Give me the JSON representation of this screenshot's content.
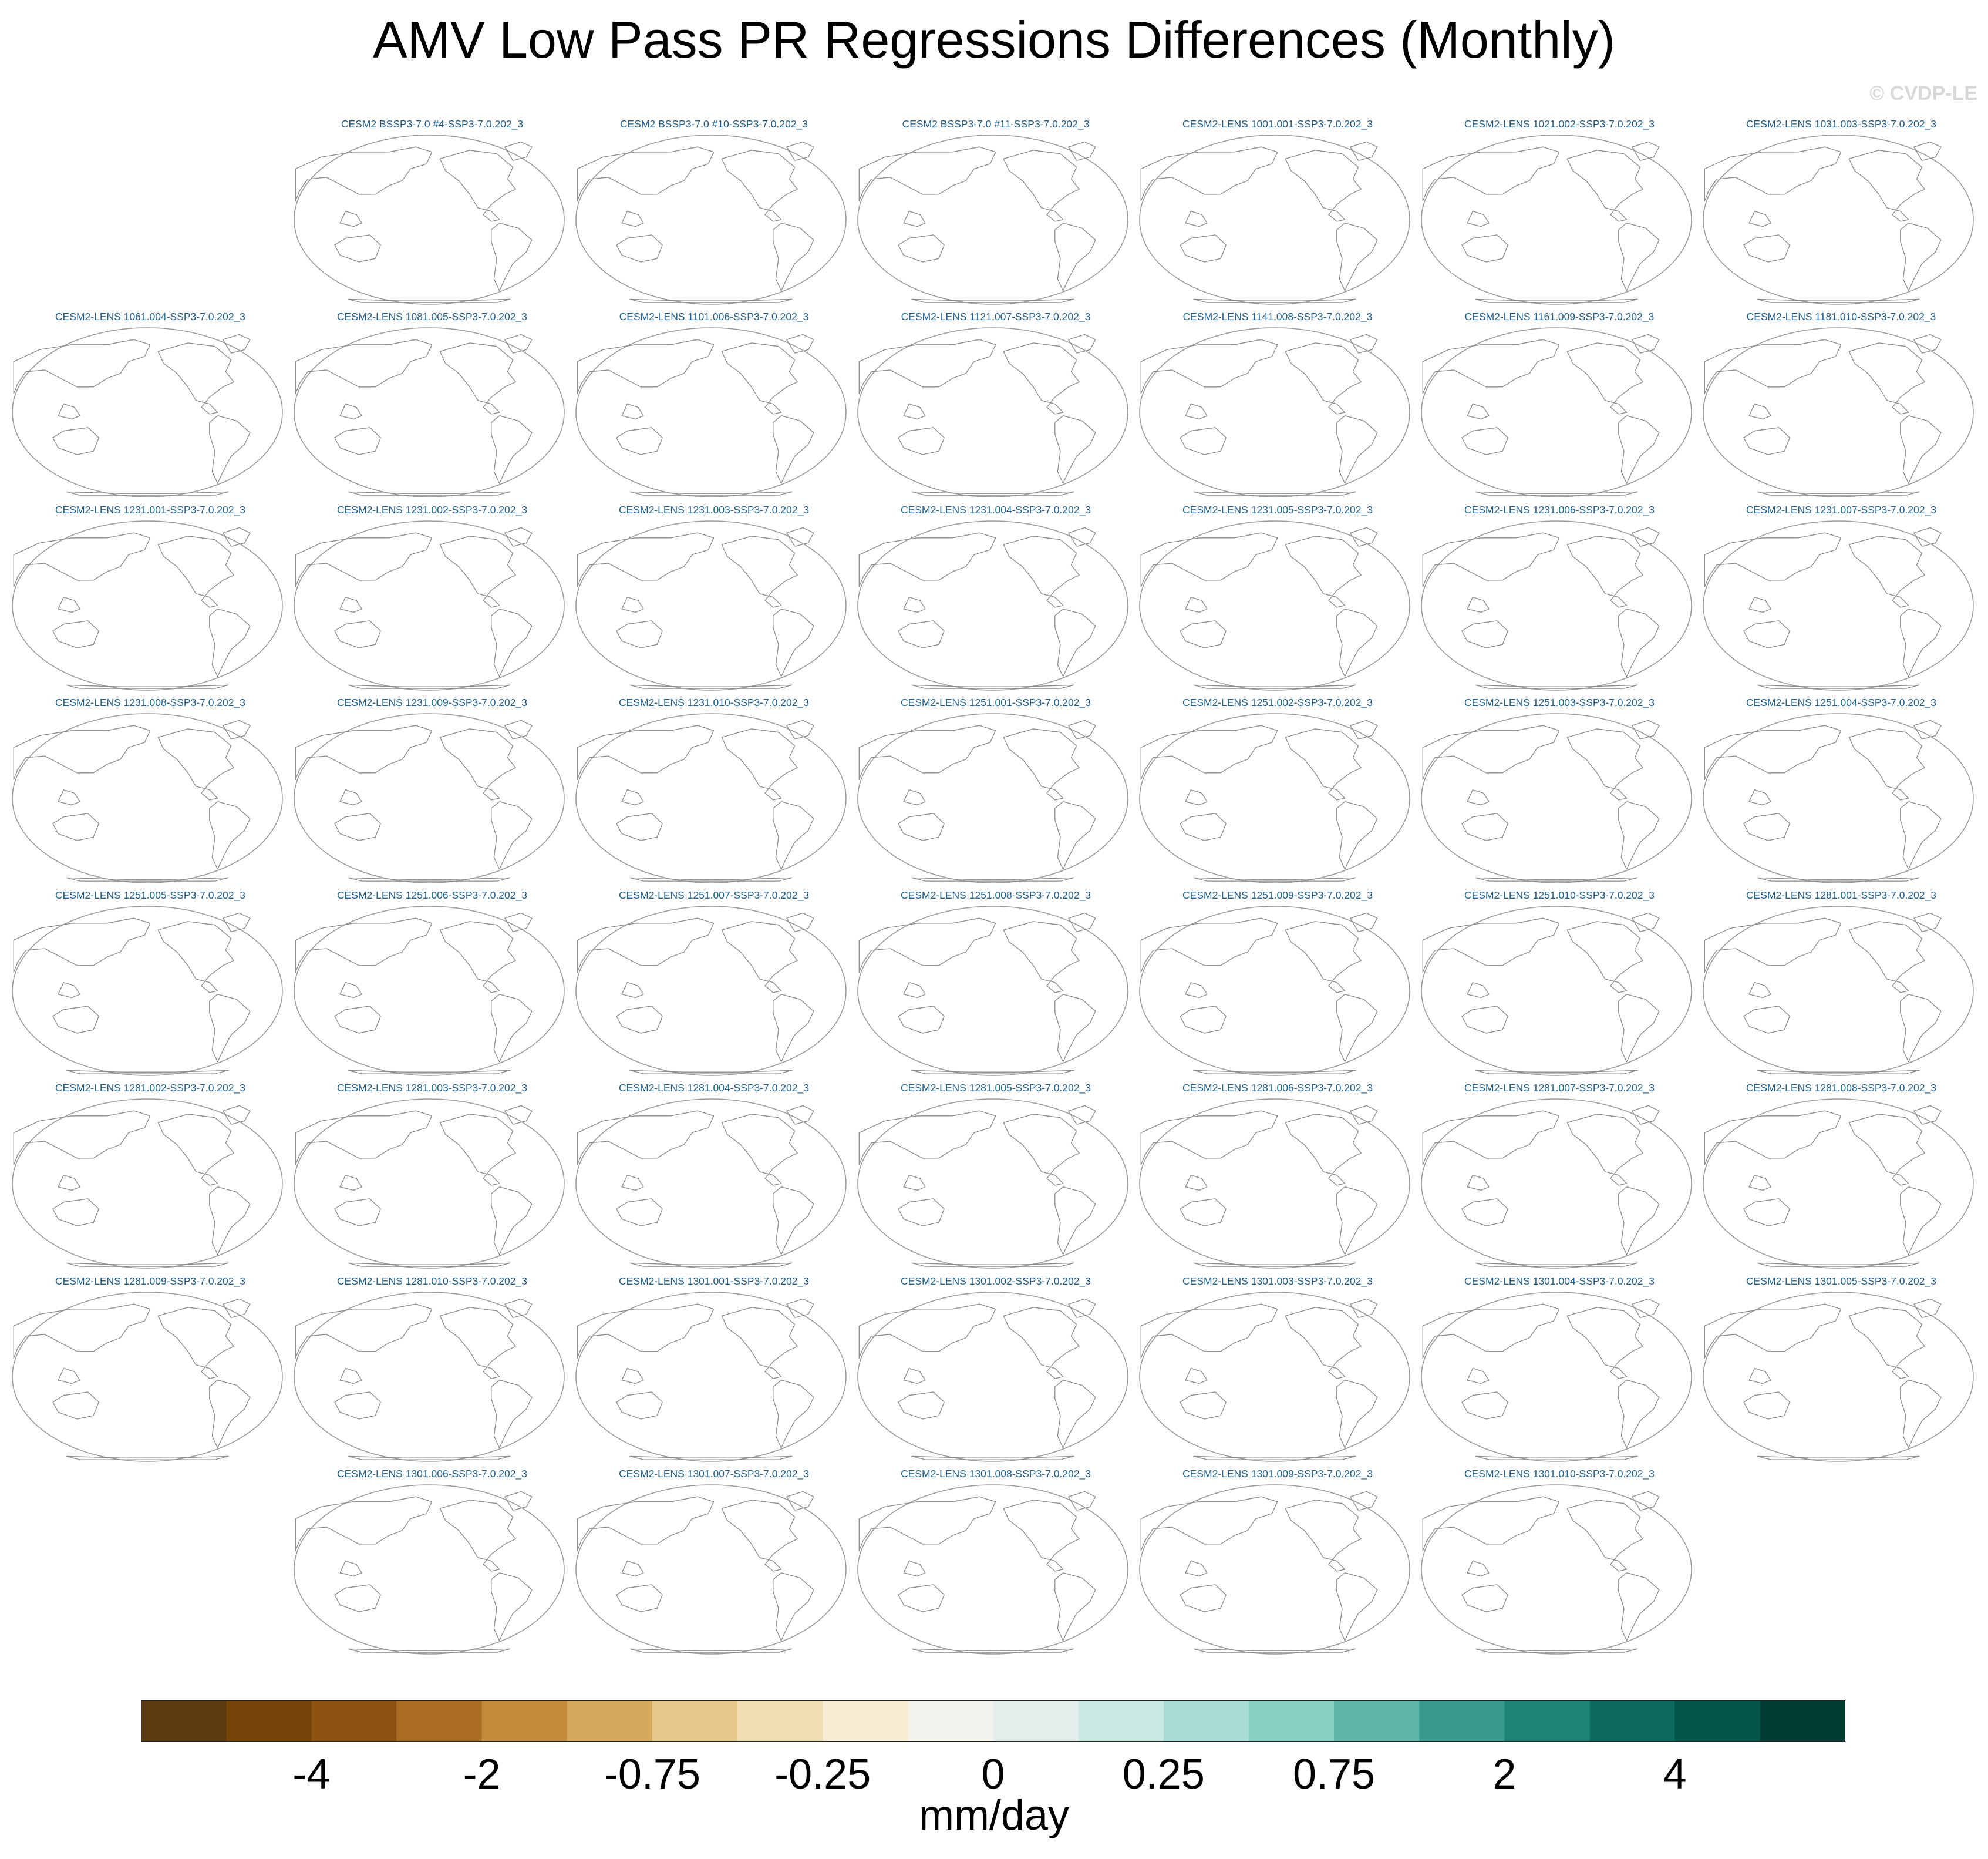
{
  "title": "AMV Low Pass PR Regressions Differences (Monthly)",
  "watermark": "© CVDP-LE",
  "chart_data": {
    "type": "map-panels",
    "variable": "PR",
    "projection": "robinson (pacific-centered)",
    "fill": "none shown (blank panels, coastlines only)",
    "panels": [
      {
        "title": "CESM2 BSSP3-7.0 #4-SSP3-7.0.202_3"
      },
      {
        "title": "CESM2 BSSP3-7.0 #10-SSP3-7.0.202_3"
      },
      {
        "title": "CESM2 BSSP3-7.0 #11-SSP3-7.0.202_3"
      },
      {
        "title": "CESM2-LENS 1001.001-SSP3-7.0.202_3"
      },
      {
        "title": "CESM2-LENS 1021.002-SSP3-7.0.202_3"
      },
      {
        "title": "CESM2-LENS 1031.003-SSP3-7.0.202_3"
      },
      {
        "title": "CESM2-LENS 1061.004-SSP3-7.0.202_3"
      },
      {
        "title": "CESM2-LENS 1081.005-SSP3-7.0.202_3"
      },
      {
        "title": "CESM2-LENS 1101.006-SSP3-7.0.202_3"
      },
      {
        "title": "CESM2-LENS 1121.007-SSP3-7.0.202_3"
      },
      {
        "title": "CESM2-LENS 1141.008-SSP3-7.0.202_3"
      },
      {
        "title": "CESM2-LENS 1161.009-SSP3-7.0.202_3"
      },
      {
        "title": "CESM2-LENS 1181.010-SSP3-7.0.202_3"
      },
      {
        "title": "CESM2-LENS 1231.001-SSP3-7.0.202_3"
      },
      {
        "title": "CESM2-LENS 1231.002-SSP3-7.0.202_3"
      },
      {
        "title": "CESM2-LENS 1231.003-SSP3-7.0.202_3"
      },
      {
        "title": "CESM2-LENS 1231.004-SSP3-7.0.202_3"
      },
      {
        "title": "CESM2-LENS 1231.005-SSP3-7.0.202_3"
      },
      {
        "title": "CESM2-LENS 1231.006-SSP3-7.0.202_3"
      },
      {
        "title": "CESM2-LENS 1231.007-SSP3-7.0.202_3"
      },
      {
        "title": "CESM2-LENS 1231.008-SSP3-7.0.202_3"
      },
      {
        "title": "CESM2-LENS 1231.009-SSP3-7.0.202_3"
      },
      {
        "title": "CESM2-LENS 1231.010-SSP3-7.0.202_3"
      },
      {
        "title": "CESM2-LENS 1251.001-SSP3-7.0.202_3"
      },
      {
        "title": "CESM2-LENS 1251.002-SSP3-7.0.202_3"
      },
      {
        "title": "CESM2-LENS 1251.003-SSP3-7.0.202_3"
      },
      {
        "title": "CESM2-LENS 1251.004-SSP3-7.0.202_3"
      },
      {
        "title": "CESM2-LENS 1251.005-SSP3-7.0.202_3"
      },
      {
        "title": "CESM2-LENS 1251.006-SSP3-7.0.202_3"
      },
      {
        "title": "CESM2-LENS 1251.007-SSP3-7.0.202_3"
      },
      {
        "title": "CESM2-LENS 1251.008-SSP3-7.0.202_3"
      },
      {
        "title": "CESM2-LENS 1251.009-SSP3-7.0.202_3"
      },
      {
        "title": "CESM2-LENS 1251.010-SSP3-7.0.202_3"
      },
      {
        "title": "CESM2-LENS 1281.001-SSP3-7.0.202_3"
      },
      {
        "title": "CESM2-LENS 1281.002-SSP3-7.0.202_3"
      },
      {
        "title": "CESM2-LENS 1281.003-SSP3-7.0.202_3"
      },
      {
        "title": "CESM2-LENS 1281.004-SSP3-7.0.202_3"
      },
      {
        "title": "CESM2-LENS 1281.005-SSP3-7.0.202_3"
      },
      {
        "title": "CESM2-LENS 1281.006-SSP3-7.0.202_3"
      },
      {
        "title": "CESM2-LENS 1281.007-SSP3-7.0.202_3"
      },
      {
        "title": "CESM2-LENS 1281.008-SSP3-7.0.202_3"
      },
      {
        "title": "CESM2-LENS 1281.009-SSP3-7.0.202_3"
      },
      {
        "title": "CESM2-LENS 1281.010-SSP3-7.0.202_3"
      },
      {
        "title": "CESM2-LENS 1301.001-SSP3-7.0.202_3"
      },
      {
        "title": "CESM2-LENS 1301.002-SSP3-7.0.202_3"
      },
      {
        "title": "CESM2-LENS 1301.003-SSP3-7.0.202_3"
      },
      {
        "title": "CESM2-LENS 1301.004-SSP3-7.0.202_3"
      },
      {
        "title": "CESM2-LENS 1301.005-SSP3-7.0.202_3"
      },
      {
        "title": "CESM2-LENS 1301.006-SSP3-7.0.202_3"
      },
      {
        "title": "CESM2-LENS 1301.007-SSP3-7.0.202_3"
      },
      {
        "title": "CESM2-LENS 1301.008-SSP3-7.0.202_3"
      },
      {
        "title": "CESM2-LENS 1301.009-SSP3-7.0.202_3"
      },
      {
        "title": "CESM2-LENS 1301.010-SSP3-7.0.202_3"
      }
    ],
    "colorbar": {
      "unit": "mm/day",
      "tick_labels": [
        "-4",
        "-2",
        "-0.75",
        "-0.25",
        "0",
        "0.25",
        "0.75",
        "2",
        "4"
      ],
      "colors": [
        "#5a3a0f",
        "#744409",
        "#8e5310",
        "#ab6d23",
        "#c28b3c",
        "#d4a85d",
        "#e6c88b",
        "#f0deb5",
        "#f6ecd4",
        "#f3f1ec",
        "#e3efec",
        "#c9e8e2",
        "#a9ddd4",
        "#86cfc1",
        "#5db6a8",
        "#379a8d",
        "#1f8276",
        "#0c6a5f",
        "#03554a",
        "#003c30"
      ]
    }
  }
}
